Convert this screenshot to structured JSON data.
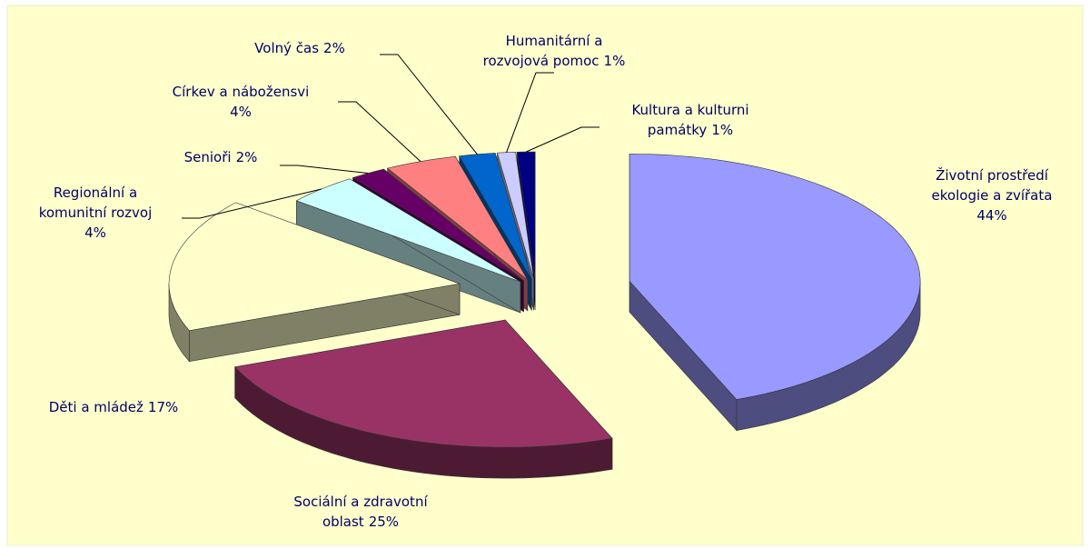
{
  "chart_data": {
    "type": "pie3d",
    "categories": [
      "Životní prostředí\nekologie a zvířata",
      "Sociální a zdravotní\noblast",
      "Děti a mládež",
      "Regionální a\nkomunitní rozvoj",
      "Senioři",
      "Církev a nábožensvi",
      "Volný čas",
      "Humanitární a\nrozvojová pomoc",
      "Kultura a kulturni\npamátky"
    ],
    "values": [
      44,
      25,
      17,
      4,
      2,
      4,
      2,
      1,
      1
    ],
    "value_labels": [
      "44%",
      "25%",
      "17%",
      "4%",
      "2%",
      "4%",
      "2%",
      "1%",
      "1%"
    ],
    "colors": [
      "#9999ff",
      "#993366",
      "#ffffcc",
      "#ccffff",
      "#660066",
      "#ff8080",
      "#0066cc",
      "#ccccff",
      "#000080"
    ]
  }
}
